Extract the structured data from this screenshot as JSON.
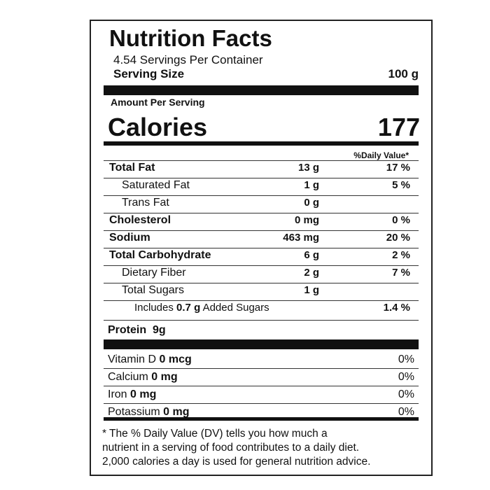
{
  "title": "Nutrition Facts",
  "servings_per_container": "4.54 Servings Per Container",
  "serving_size": {
    "label": "Serving Size",
    "value": "100 g"
  },
  "amount_per_serving": "Amount Per Serving",
  "calories": {
    "label": "Calories",
    "value": "177"
  },
  "daily_value_header": "%Daily Value*",
  "nutrients": [
    {
      "label": "Total Fat",
      "amount": "13 g",
      "dv": "17 %"
    },
    {
      "label": "Saturated Fat",
      "amount": "1 g",
      "dv": "5 %"
    },
    {
      "label": "Trans Fat",
      "amount": "0 g"
    },
    {
      "label": "Cholesterol",
      "amount": "0 mg",
      "dv": "0 %"
    },
    {
      "label": "Sodium",
      "amount": "463 mg",
      "dv": "20 %"
    },
    {
      "label": "Total Carbohydrate",
      "amount": "6 g",
      "dv": "2 %"
    },
    {
      "label": "Dietary Fiber",
      "amount": "2 g",
      "dv": "7 %"
    },
    {
      "label": "Total Sugars",
      "amount": "1 g"
    }
  ],
  "added_sugars": {
    "prefix": "Includes",
    "amount": "0.7 g",
    "suffix": "Added Sugars",
    "dv": "1.4 %"
  },
  "protein": {
    "label": "Protein",
    "amount": "9g"
  },
  "vitamins": [
    {
      "label": "Vitamin D",
      "amount": "0 mcg",
      "dv": "0%"
    },
    {
      "label": "Calcium",
      "amount": "0 mg",
      "dv": "0%"
    },
    {
      "label": "Iron",
      "amount": "0 mg",
      "dv": "0%"
    },
    {
      "label": "Potassium",
      "amount": "0 mg",
      "dv": "0%"
    }
  ],
  "footnote": [
    "* The % Daily Value (DV) tells you how much a",
    "nutrient in a serving of food contributes to a daily diet.",
    "2,000 calories a day is used for general nutrition advice."
  ]
}
